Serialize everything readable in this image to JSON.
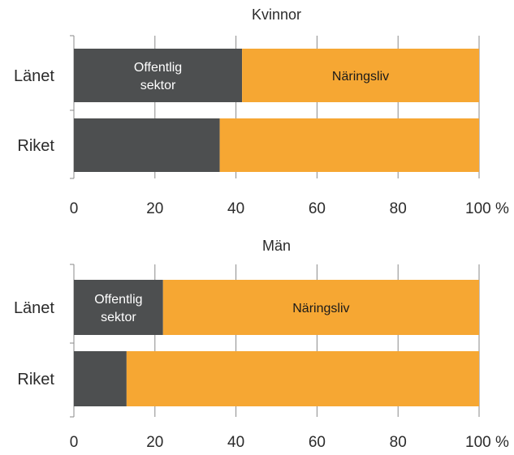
{
  "chart_data": [
    {
      "type": "bar",
      "orientation": "horizontal",
      "stacked": true,
      "title": "Kvinnor",
      "categories": [
        "Länet",
        "Riket"
      ],
      "series": [
        {
          "name": "Offentlig sektor",
          "values": [
            41.5,
            36
          ],
          "color": "#4d4f50"
        },
        {
          "name": "Näringsliv",
          "values": [
            58.5,
            64
          ],
          "color": "#f6a733"
        }
      ],
      "xlim": [
        0,
        100
      ],
      "xticks": [
        "0",
        "20",
        "40",
        "60",
        "80",
        "100 %"
      ],
      "grid": true,
      "inbar_labels": {
        "Offentlig sektor": [
          "Offentlig",
          "sektor"
        ],
        "Näringsliv": [
          "Näringsliv"
        ]
      }
    },
    {
      "type": "bar",
      "orientation": "horizontal",
      "stacked": true,
      "title": "Män",
      "categories": [
        "Länet",
        "Riket"
      ],
      "series": [
        {
          "name": "Offentlig sektor",
          "values": [
            22,
            13
          ],
          "color": "#4d4f50"
        },
        {
          "name": "Näringsliv",
          "values": [
            78,
            87
          ],
          "color": "#f6a733"
        }
      ],
      "xlim": [
        0,
        100
      ],
      "xticks": [
        "0",
        "20",
        "40",
        "60",
        "80",
        "100 %"
      ],
      "grid": true,
      "inbar_labels": {
        "Offentlig sektor": [
          "Offentlig",
          "sektor"
        ],
        "Näringsliv": [
          "Näringsliv"
        ]
      }
    }
  ]
}
